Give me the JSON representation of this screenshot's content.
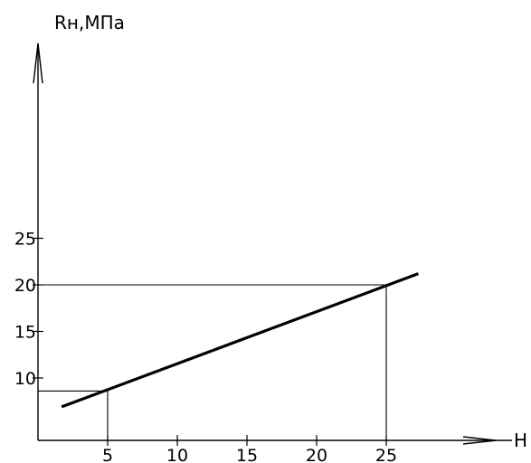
{
  "chart_data": {
    "type": "line",
    "title": "",
    "ylabel": "Rн,МПа",
    "xlabel": "Н",
    "xlim": [
      0,
      33
    ],
    "ylim": [
      3.3,
      31
    ],
    "x_ticks": [
      5,
      10,
      15,
      20,
      25
    ],
    "y_ticks": [
      10,
      15,
      20,
      25
    ],
    "grid": false,
    "series": [
      {
        "x": [
          1.7,
          27.3
        ],
        "y": [
          6.9,
          21.2
        ]
      }
    ],
    "reference_points": [
      {
        "x": 5,
        "y": 8.6
      },
      {
        "x": 25,
        "y": 20
      }
    ]
  }
}
